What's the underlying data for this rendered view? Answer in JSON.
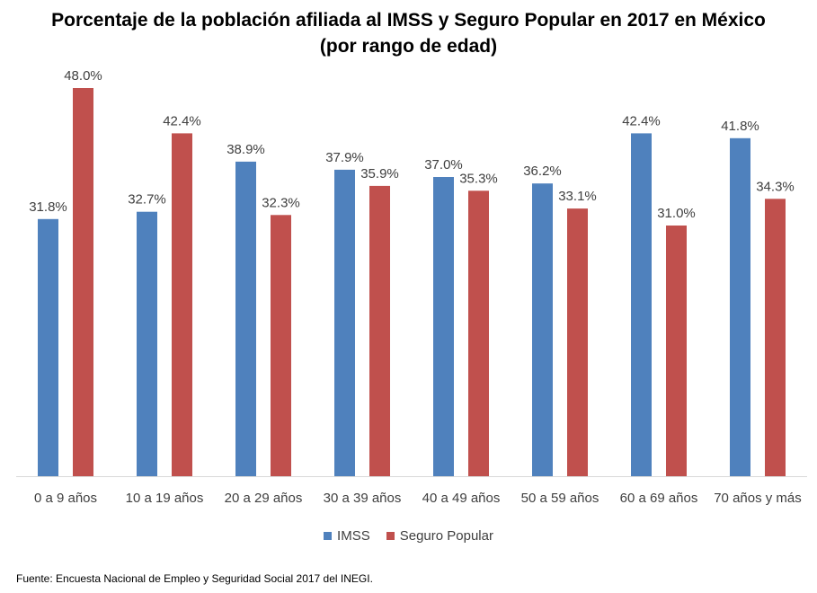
{
  "chart_data": {
    "type": "bar",
    "title": [
      "Porcentaje de la población afiliada al IMSS y Seguro Popular en 2017 en México",
      "(por rango de edad)"
    ],
    "categories": [
      "0 a 9 años",
      "10 a 19 años",
      "20 a 29 años",
      "30 a 39 años",
      "40 a 49 años",
      "50 a 59 años",
      "60 a 69 años",
      "70 años y más"
    ],
    "series": [
      {
        "name": "IMSS",
        "color": "#4F81BD",
        "values": [
          31.8,
          32.7,
          38.9,
          37.9,
          37.0,
          36.2,
          42.4,
          41.8
        ],
        "labels": [
          "31.8%",
          "32.7%",
          "38.9%",
          "37.9%",
          "37.0%",
          "36.2%",
          "42.4%",
          "41.8%"
        ]
      },
      {
        "name": "Seguro Popular",
        "color": "#C0504D",
        "values": [
          48.0,
          42.4,
          32.3,
          35.9,
          35.3,
          33.1,
          31.0,
          34.3
        ],
        "labels": [
          "48.0%",
          "42.4%",
          "32.3%",
          "35.9%",
          "35.3%",
          "33.1%",
          "31.0%",
          "34.3%"
        ]
      }
    ],
    "ylim": [
      0,
      50
    ],
    "grid": false,
    "legend": "bottom",
    "source_note": "Fuente: Encuesta Nacional de Empleo y Seguridad Social 2017 del INEGI."
  }
}
